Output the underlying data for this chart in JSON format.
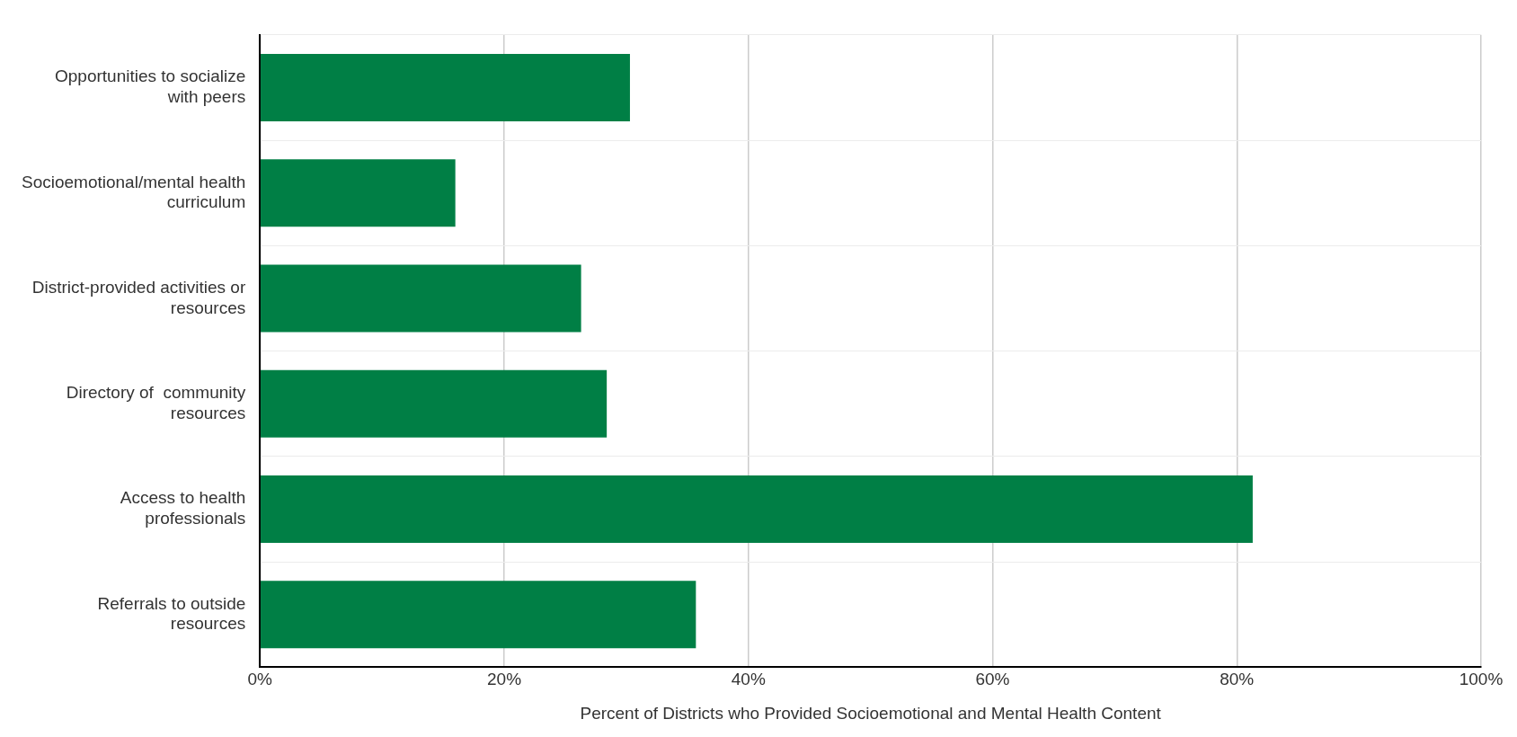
{
  "chart_data": {
    "type": "bar",
    "orientation": "horizontal",
    "xlabel": "Percent of Districts who Provided Socioemotional and Mental Health Content",
    "categories": [
      "Opportunities to socialize with peers",
      "Socioemotional/mental health curriculum",
      "District-provided activities or resources",
      "Directory of  community resources",
      "Access to health professionals",
      "Referrals to outside resources"
    ],
    "values": [
      30.3,
      16.0,
      26.3,
      28.4,
      81.3,
      35.7
    ],
    "color": "#007f45",
    "xlim": [
      0,
      100
    ],
    "xticks": [
      {
        "value": 0,
        "label": "0%"
      },
      {
        "value": 20,
        "label": "20%"
      },
      {
        "value": 40,
        "label": "40%"
      },
      {
        "value": 60,
        "label": "60%"
      },
      {
        "value": 80,
        "label": "80%"
      },
      {
        "value": 100,
        "label": "100%"
      }
    ],
    "grid": true,
    "legend": false
  }
}
